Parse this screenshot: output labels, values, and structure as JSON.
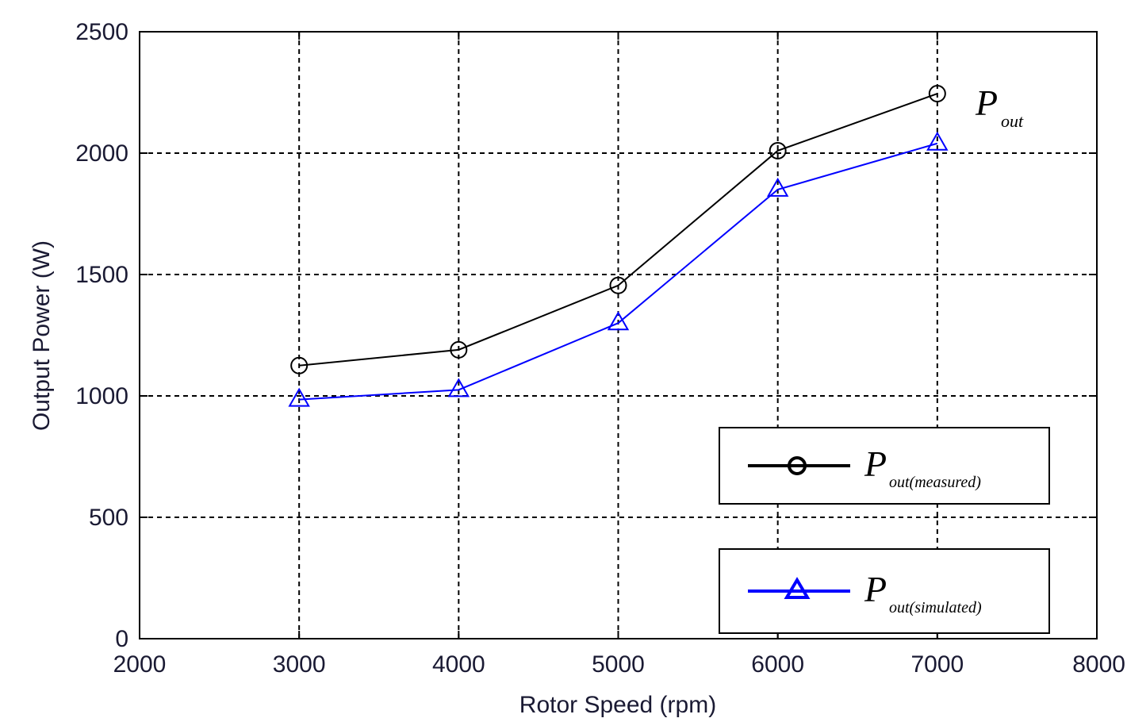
{
  "chart_data": {
    "type": "line",
    "xlabel": "Rotor Speed (rpm)",
    "ylabel": "Output Power (W)",
    "xlim": [
      2000,
      8000
    ],
    "ylim": [
      0,
      2500
    ],
    "x_ticks": [
      2000,
      3000,
      4000,
      5000,
      6000,
      7000,
      8000
    ],
    "y_ticks": [
      0,
      500,
      1000,
      1500,
      2000,
      2500
    ],
    "x_tick_labels": [
      "2000",
      "3000",
      "4000",
      "5000",
      "6000",
      "7000",
      "8000"
    ],
    "y_tick_labels": [
      "0",
      "500",
      "1000",
      "1500",
      "2000",
      "2500"
    ],
    "grid": true,
    "annotation": {
      "main": "P",
      "sub": "out"
    },
    "series": [
      {
        "name_main": "P",
        "name_sub": "out(measured)",
        "x": [
          3000,
          4000,
          5000,
          6000,
          7000
        ],
        "y": [
          1125,
          1190,
          1455,
          2010,
          2245
        ],
        "color": "#000000",
        "marker": "circle"
      },
      {
        "name_main": "P",
        "name_sub": "out(simulated)",
        "x": [
          3000,
          4000,
          5000,
          6000,
          7000
        ],
        "y": [
          985,
          1025,
          1300,
          1850,
          2040
        ],
        "color": "#0000ff",
        "marker": "triangle"
      }
    ],
    "legend_position": "bottom-right"
  }
}
